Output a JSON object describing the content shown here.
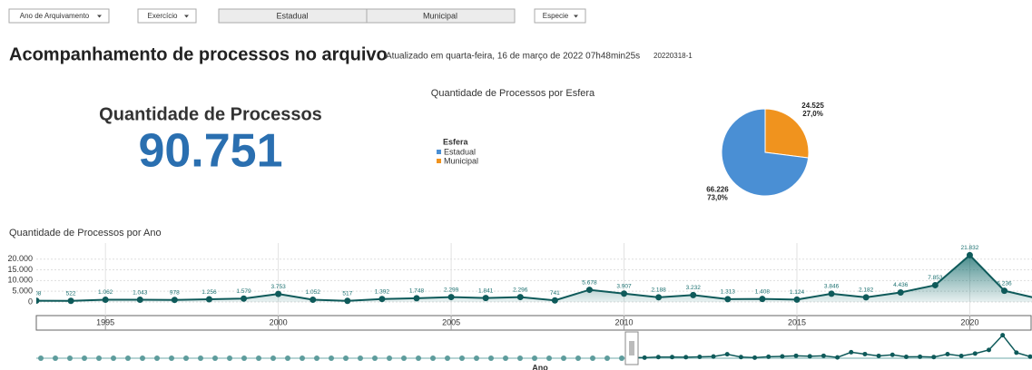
{
  "controls": {
    "filters": [
      "Ano de Arquivamento",
      "Exercício",
      "Especie"
    ],
    "toggle": [
      "Estadual",
      "Municipal"
    ]
  },
  "header": {
    "title": "Acompanhamento de processos no arquivo",
    "updated": "Atualizado em quarta-feira, 16 de março de 2022 07h48min25s",
    "version": "20220318-1"
  },
  "kpi": {
    "title": "Quantidade de Processos",
    "value": "90.751"
  },
  "chart_data": [
    {
      "type": "pie",
      "title": "Quantidade de Processos por Esfera",
      "legend_title": "Esfera",
      "categories": [
        "Estadual",
        "Municipal"
      ],
      "values": [
        66226,
        24525
      ],
      "value_labels": [
        "66.226",
        "24.525"
      ],
      "percent_labels": [
        "73,0%",
        "27,0%"
      ],
      "colors": [
        "#4a8fd4",
        "#f0931e"
      ]
    },
    {
      "type": "area",
      "title": "Quantidade de Processos por Ano",
      "x_label": "Ano",
      "x": [
        1993,
        1994,
        1995,
        1996,
        1997,
        1998,
        1999,
        2000,
        2001,
        2002,
        2003,
        2004,
        2005,
        2006,
        2007,
        2008,
        2009,
        2010,
        2011,
        2012,
        2013,
        2014,
        2015,
        2016,
        2017,
        2018,
        2019,
        2020,
        2021,
        2022
      ],
      "values": [
        608,
        522,
        1062,
        1043,
        978,
        1256,
        1579,
        3753,
        1052,
        517,
        1392,
        1748,
        2299,
        1841,
        2296,
        741,
        5678,
        3907,
        2188,
        3232,
        1313,
        1408,
        1124,
        3846,
        2182,
        4436,
        7853,
        21832,
        5236,
        1500
      ],
      "value_labels": [
        "608",
        "522",
        "1.062",
        "1.043",
        "978",
        "1.256",
        "1.579",
        "3.753",
        "1.052",
        "517",
        "1.392",
        "1.748",
        "2.299",
        "1.841",
        "2.296",
        "741",
        "5.678",
        "3.907",
        "2.188",
        "3.232",
        "1.313",
        "1.408",
        "1.124",
        "3.846",
        "2.182",
        "4.436",
        "7.853",
        "21.832",
        "5.236",
        null
      ],
      "color": "#1b7070",
      "xlim": [
        1993,
        2021.8
      ],
      "ylim": [
        0,
        27500
      ],
      "yticks": [
        0,
        {
          "value": 5000,
          "label": "5.000"
        },
        {
          "value": 10000,
          "label": "10.000"
        },
        {
          "value": 15000,
          "label": "15.000"
        },
        {
          "value": 20000,
          "label": "20.000"
        }
      ],
      "xticks": [
        1995,
        2000,
        2005,
        2010,
        2015,
        2020
      ],
      "grid": true
    }
  ]
}
